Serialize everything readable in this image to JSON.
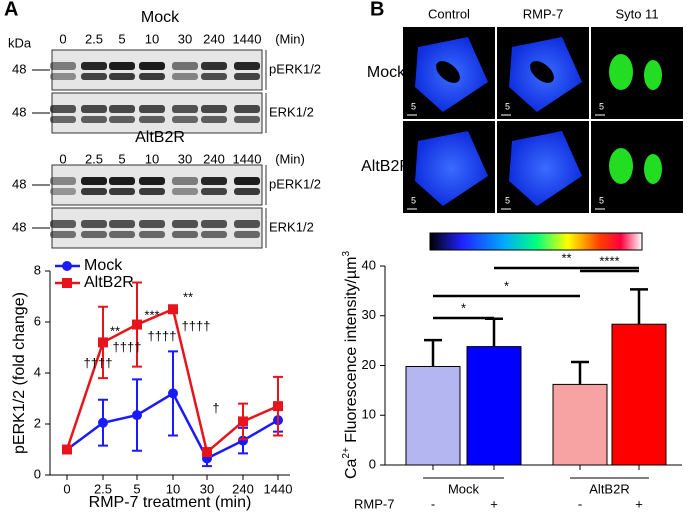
{
  "panel_labels": [
    "A",
    "B"
  ],
  "panel_a": {
    "kda": "kDa",
    "unit": "(Min)",
    "blots": [
      {
        "title": "Mock",
        "times": [
          "0",
          "2.5",
          "5",
          "10",
          "30",
          "240",
          "1440"
        ],
        "rows": [
          {
            "size": "48",
            "label": "pERK1/2"
          },
          {
            "size": "48",
            "label": "ERK1/2"
          }
        ]
      },
      {
        "title": "AltB2R",
        "times": [
          "0",
          "2.5",
          "5",
          "10",
          "30",
          "240",
          "1440"
        ],
        "rows": [
          {
            "size": "48",
            "label": "pERK1/2"
          },
          {
            "size": "48",
            "label": "ERK1/2"
          }
        ]
      }
    ]
  },
  "panel_b": {
    "columns": [
      "Control",
      "RMP-7",
      "Syto 11"
    ],
    "rows": [
      "Mock",
      "AltB2R"
    ],
    "scale": "5"
  },
  "chart_data": [
    {
      "type": "line",
      "y_label": "pERK1/2 (fold change)",
      "x_label": "RMP-7 treatment (min)",
      "categories": [
        "0",
        "2.5",
        "5",
        "10",
        "30",
        "240",
        "1440"
      ],
      "ylim": [
        0,
        8
      ],
      "yticks": [
        0,
        2,
        4,
        6,
        8
      ],
      "legend": "top-left",
      "series": [
        {
          "name": "Mock",
          "color": "#1a1aff",
          "marker": "circle",
          "values": [
            1,
            2.05,
            2.35,
            3.2,
            0.65,
            1.35,
            2.15
          ],
          "errors": [
            0,
            0.9,
            1.4,
            1.65,
            0.3,
            0.5,
            0.45
          ]
        },
        {
          "name": "AltB2R",
          "color": "#e8141c",
          "marker": "square",
          "values": [
            1,
            5.2,
            5.9,
            6.5,
            0.9,
            2.1,
            2.7
          ],
          "errors": [
            0,
            1.4,
            1.65,
            0,
            0.15,
            0.7,
            1.15
          ]
        }
      ],
      "annotations": [
        "**",
        "***",
        "**",
        "††††",
        "††††",
        "††††",
        "††††",
        "†"
      ]
    },
    {
      "type": "bar",
      "y_label_parts": [
        "Ca",
        "2+",
        " Fluorescence intensity/µm",
        "3"
      ],
      "categories": [
        "-",
        "+",
        "-",
        "+"
      ],
      "groups": [
        "Mock",
        "AltB2R"
      ],
      "row_label": "RMP-7",
      "values": [
        19.8,
        23.8,
        16.2,
        28.3
      ],
      "errors": [
        5.3,
        5.6,
        4.5,
        7.0
      ],
      "colors": [
        "#b4b6f2",
        "#0000ff",
        "#f7a3a3",
        "#ff0000"
      ],
      "ylim": [
        0,
        40
      ],
      "yticks": [
        0,
        10,
        20,
        30,
        40
      ],
      "significance": [
        {
          "text": "*",
          "from": 0,
          "to": 1
        },
        {
          "text": "*",
          "from": 0,
          "to": 2
        },
        {
          "text": "****",
          "from": 2,
          "to": 3
        },
        {
          "text": "**",
          "from": 1,
          "to": 3
        }
      ]
    }
  ]
}
